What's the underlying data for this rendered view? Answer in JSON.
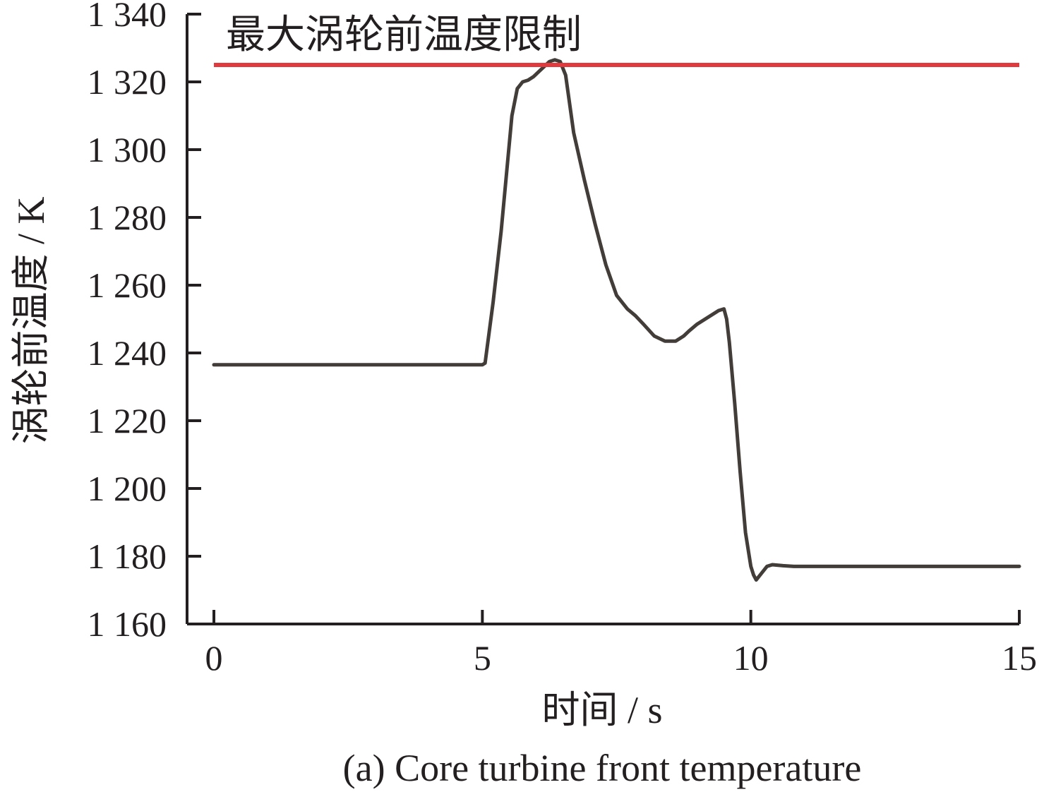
{
  "chart_data": {
    "type": "line",
    "xlabel": "时间 / s",
    "ylabel": "涡轮前温度 / K",
    "caption": "(a) Core turbine front temperature",
    "annotation": "最大涡轮前温度限制",
    "xlim": [
      -0.5,
      15
    ],
    "ylim": [
      1160,
      1340
    ],
    "x_ticks": [
      0,
      5,
      10,
      15
    ],
    "x_tick_labels": [
      "0",
      "5",
      "10",
      "15"
    ],
    "y_ticks": [
      1160,
      1180,
      1200,
      1220,
      1240,
      1260,
      1280,
      1300,
      1320,
      1340
    ],
    "y_tick_labels": [
      "1 160",
      "1 180",
      "1 200",
      "1 220",
      "1 240",
      "1 260",
      "1 280",
      "1 300",
      "1 320",
      "1 340"
    ],
    "grid": false,
    "colors": {
      "series": "#433d39",
      "limit": "#e0393e",
      "axis": "#231f20"
    },
    "limit_line": {
      "y": 1325,
      "x_range": [
        0,
        15
      ]
    },
    "series": [
      {
        "x": [
          0,
          5.0,
          5.05,
          5.2,
          5.35,
          5.45,
          5.55,
          5.65,
          5.75,
          5.85,
          5.95,
          6.05,
          6.15,
          6.25,
          6.35,
          6.45,
          6.55,
          6.7,
          6.9,
          7.1,
          7.3,
          7.5,
          7.7,
          7.85,
          8.0,
          8.2,
          8.4,
          8.6,
          8.75,
          8.85,
          9.0,
          9.2,
          9.4,
          9.5,
          9.55,
          9.6,
          9.7,
          9.8,
          9.9,
          10.0,
          10.05,
          10.1,
          10.2,
          10.3,
          10.4,
          10.6,
          10.8,
          11,
          12,
          13,
          14,
          15
        ],
        "y": [
          1236.5,
          1236.5,
          1237,
          1255,
          1276,
          1293,
          1310,
          1318,
          1320,
          1320.5,
          1321.5,
          1323,
          1324.5,
          1326,
          1326.5,
          1326,
          1322,
          1305,
          1291,
          1278,
          1266,
          1257,
          1253,
          1251,
          1248.5,
          1245,
          1243.5,
          1243.5,
          1245,
          1246.5,
          1248.5,
          1250.5,
          1252.5,
          1253,
          1250,
          1243,
          1225,
          1205,
          1187,
          1177,
          1174.5,
          1173,
          1175,
          1177,
          1177.5,
          1177.2,
          1177,
          1177,
          1177,
          1177,
          1177,
          1177
        ]
      }
    ]
  }
}
